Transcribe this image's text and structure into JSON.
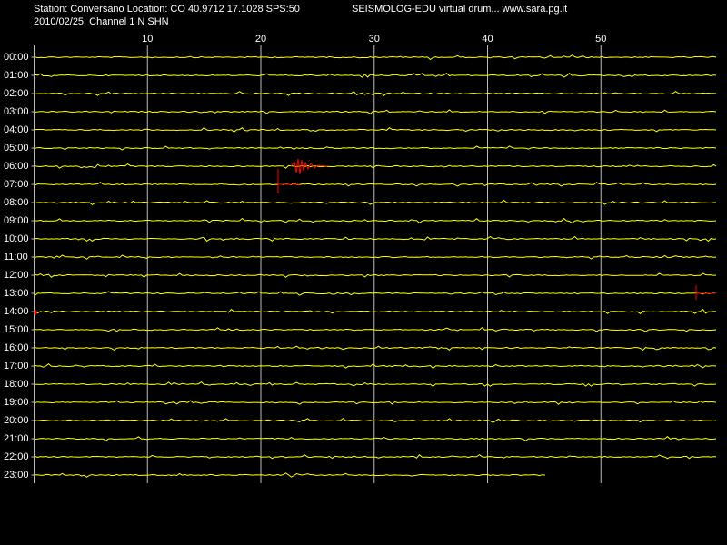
{
  "header": {
    "station": "Station: Conversano Location: CO 40.9712 17.1028 SPS:50",
    "program": "SEISMOLOG-EDU virtual drum... www.sara.pg.it",
    "date_channel": "2010/02/25  Channel 1 N SHN"
  },
  "axis": {
    "xlim": [
      0,
      60
    ],
    "xticks": [
      10,
      20,
      30,
      40,
      50
    ]
  },
  "rows": [
    "00:00",
    "01:00",
    "02:00",
    "03:00",
    "04:00",
    "05:00",
    "06:00",
    "07:00",
    "08:00",
    "09:00",
    "10:00",
    "11:00",
    "12:00",
    "13:00",
    "14:00",
    "15:00",
    "16:00",
    "17:00",
    "18:00",
    "19:00",
    "20:00",
    "21:00",
    "22:00",
    "23:00"
  ]
}
